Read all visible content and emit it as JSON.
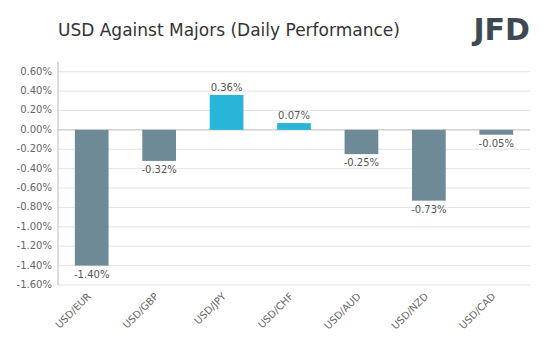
{
  "chart_data": {
    "type": "bar",
    "title": "USD Against Majors (Daily Performance)",
    "annotations": [
      "JFD"
    ],
    "categories": [
      "USD/EUR",
      "USD/GBP",
      "USD/JPY",
      "USD/CHF",
      "USD/AUD",
      "USD/NZD",
      "USD/CAD"
    ],
    "values": [
      -1.4,
      -0.32,
      0.36,
      0.07,
      -0.25,
      -0.73,
      -0.05
    ],
    "value_labels": [
      "-1.40%",
      "-0.32%",
      "0.36%",
      "0.07%",
      "-0.25%",
      "-0.73%",
      "-0.05%"
    ],
    "colors": [
      "#6d8a96",
      "#6d8a96",
      "#29b5d8",
      "#29b5d8",
      "#6d8a96",
      "#6d8a96",
      "#6d8a96"
    ],
    "ylim": [
      -1.6,
      0.7
    ],
    "yticks": [
      {
        "value": -1.6,
        "label": "-1.60%"
      },
      {
        "value": -1.4,
        "label": "-1.40%"
      },
      {
        "value": -1.2,
        "label": "-1.20%"
      },
      {
        "value": -1.0,
        "label": "-1.00%"
      },
      {
        "value": -0.8,
        "label": "-0.80%"
      },
      {
        "value": -0.6,
        "label": "-0.60%"
      },
      {
        "value": -0.4,
        "label": "-0.40%"
      },
      {
        "value": -0.2,
        "label": "-0.20%"
      },
      {
        "value": 0.0,
        "label": "0.00%"
      },
      {
        "value": 0.2,
        "label": "0.20%"
      },
      {
        "value": 0.4,
        "label": "0.40%"
      },
      {
        "value": 0.6,
        "label": "0.60%"
      }
    ],
    "grid": true,
    "data_labels": true
  }
}
